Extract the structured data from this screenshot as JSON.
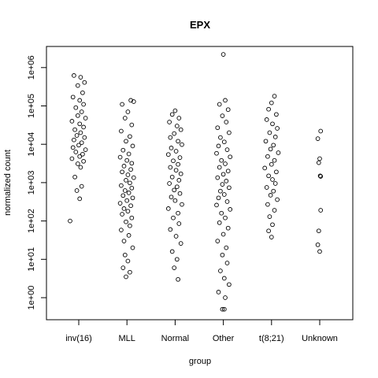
{
  "chart_data": {
    "type": "scatter",
    "title": "EPX",
    "xlabel": "group",
    "ylabel": "normalized count",
    "y_scale": "log10",
    "ylim": [
      0.3,
      3000000
    ],
    "grid": false,
    "legend": "none",
    "marker": "open-circle",
    "categories": [
      "inv(16)",
      "MLL",
      "Normal",
      "Other",
      "t(8;21)",
      "Unknown"
    ],
    "y_ticks": [
      {
        "value": 1,
        "label": "1e+00"
      },
      {
        "value": 10,
        "label": "1e+01"
      },
      {
        "value": 100,
        "label": "1e+02"
      },
      {
        "value": 1000,
        "label": "1e+03"
      },
      {
        "value": 10000,
        "label": "1e+04"
      },
      {
        "value": 100000,
        "label": "1e+05"
      },
      {
        "value": 1000000,
        "label": "1e+06"
      }
    ],
    "series": [
      {
        "category": "inv(16)",
        "points": [
          {
            "x": -0.1,
            "y": 620000
          },
          {
            "x": 0.04,
            "y": 560000
          },
          {
            "x": 0.12,
            "y": 410000
          },
          {
            "x": -0.02,
            "y": 340000
          },
          {
            "x": 0.08,
            "y": 220000
          },
          {
            "x": -0.12,
            "y": 170000
          },
          {
            "x": 0.02,
            "y": 140000
          },
          {
            "x": 0.1,
            "y": 110000
          },
          {
            "x": -0.06,
            "y": 90000
          },
          {
            "x": 0.06,
            "y": 70000
          },
          {
            "x": -0.02,
            "y": 56000
          },
          {
            "x": 0.14,
            "y": 48000
          },
          {
            "x": -0.14,
            "y": 40000
          },
          {
            "x": 0.02,
            "y": 34000
          },
          {
            "x": 0.1,
            "y": 28000
          },
          {
            "x": -0.08,
            "y": 24000
          },
          {
            "x": 0.04,
            "y": 20000
          },
          {
            "x": -0.04,
            "y": 17000
          },
          {
            "x": 0.12,
            "y": 15000
          },
          {
            "x": -0.1,
            "y": 13000
          },
          {
            "x": 0.06,
            "y": 11000
          },
          {
            "x": 0.0,
            "y": 9500
          },
          {
            "x": -0.12,
            "y": 8200
          },
          {
            "x": 0.14,
            "y": 7200
          },
          {
            "x": -0.06,
            "y": 6300
          },
          {
            "x": 0.08,
            "y": 5500
          },
          {
            "x": 0.02,
            "y": 4800
          },
          {
            "x": -0.14,
            "y": 4200
          },
          {
            "x": 0.1,
            "y": 3600
          },
          {
            "x": -0.02,
            "y": 3100
          },
          {
            "x": 0.04,
            "y": 2500
          },
          {
            "x": -0.08,
            "y": 1400
          },
          {
            "x": 0.06,
            "y": 800
          },
          {
            "x": -0.04,
            "y": 620
          },
          {
            "x": 0.02,
            "y": 380
          },
          {
            "x": -0.18,
            "y": 100
          }
        ]
      },
      {
        "category": "MLL",
        "points": [
          {
            "x": 0.08,
            "y": 140000
          },
          {
            "x": 0.14,
            "y": 130000
          },
          {
            "x": -0.1,
            "y": 110000
          },
          {
            "x": 0.02,
            "y": 70000
          },
          {
            "x": -0.04,
            "y": 48000
          },
          {
            "x": 0.1,
            "y": 32000
          },
          {
            "x": -0.12,
            "y": 22000
          },
          {
            "x": 0.06,
            "y": 16000
          },
          {
            "x": -0.02,
            "y": 12000
          },
          {
            "x": 0.12,
            "y": 9000
          },
          {
            "x": -0.08,
            "y": 7000
          },
          {
            "x": 0.04,
            "y": 5600
          },
          {
            "x": -0.14,
            "y": 4600
          },
          {
            "x": 0.0,
            "y": 3800
          },
          {
            "x": 0.1,
            "y": 3200
          },
          {
            "x": -0.06,
            "y": 2700
          },
          {
            "x": 0.08,
            "y": 2200
          },
          {
            "x": -0.1,
            "y": 1900
          },
          {
            "x": 0.02,
            "y": 1600
          },
          {
            "x": 0.14,
            "y": 1350
          },
          {
            "x": -0.02,
            "y": 1150
          },
          {
            "x": 0.06,
            "y": 980
          },
          {
            "x": -0.12,
            "y": 840
          },
          {
            "x": 0.1,
            "y": 720
          },
          {
            "x": -0.04,
            "y": 620
          },
          {
            "x": 0.04,
            "y": 540
          },
          {
            "x": -0.08,
            "y": 460
          },
          {
            "x": 0.12,
            "y": 400
          },
          {
            "x": 0.0,
            "y": 340
          },
          {
            "x": -0.14,
            "y": 290
          },
          {
            "x": 0.08,
            "y": 250
          },
          {
            "x": -0.06,
            "y": 210
          },
          {
            "x": 0.02,
            "y": 180
          },
          {
            "x": -0.1,
            "y": 150
          },
          {
            "x": 0.1,
            "y": 120
          },
          {
            "x": -0.02,
            "y": 95
          },
          {
            "x": 0.06,
            "y": 75
          },
          {
            "x": -0.12,
            "y": 58
          },
          {
            "x": 0.04,
            "y": 42
          },
          {
            "x": -0.06,
            "y": 30
          },
          {
            "x": 0.12,
            "y": 20
          },
          {
            "x": -0.04,
            "y": 13
          },
          {
            "x": 0.02,
            "y": 9
          },
          {
            "x": -0.08,
            "y": 6
          },
          {
            "x": 0.06,
            "y": 4.6
          },
          {
            "x": -0.02,
            "y": 3.5
          }
        ]
      },
      {
        "category": "Normal",
        "points": [
          {
            "x": 0.0,
            "y": 75000
          },
          {
            "x": -0.06,
            "y": 60000
          },
          {
            "x": 0.08,
            "y": 48000
          },
          {
            "x": -0.12,
            "y": 38000
          },
          {
            "x": 0.04,
            "y": 30000
          },
          {
            "x": 0.12,
            "y": 24000
          },
          {
            "x": -0.02,
            "y": 19000
          },
          {
            "x": -0.1,
            "y": 15000
          },
          {
            "x": 0.06,
            "y": 12000
          },
          {
            "x": 0.14,
            "y": 9800
          },
          {
            "x": -0.08,
            "y": 8000
          },
          {
            "x": 0.02,
            "y": 6600
          },
          {
            "x": -0.14,
            "y": 5400
          },
          {
            "x": 0.1,
            "y": 4500
          },
          {
            "x": -0.04,
            "y": 3700
          },
          {
            "x": 0.06,
            "y": 3000
          },
          {
            "x": -0.1,
            "y": 2500
          },
          {
            "x": 0.02,
            "y": 2100
          },
          {
            "x": 0.12,
            "y": 1700
          },
          {
            "x": -0.06,
            "y": 1400
          },
          {
            "x": 0.08,
            "y": 1150
          },
          {
            "x": -0.12,
            "y": 950
          },
          {
            "x": 0.04,
            "y": 780
          },
          {
            "x": -0.02,
            "y": 640
          },
          {
            "x": 0.1,
            "y": 520
          },
          {
            "x": -0.08,
            "y": 420
          },
          {
            "x": 0.0,
            "y": 340
          },
          {
            "x": 0.14,
            "y": 270
          },
          {
            "x": -0.14,
            "y": 210
          },
          {
            "x": 0.06,
            "y": 160
          },
          {
            "x": -0.04,
            "y": 120
          },
          {
            "x": 0.08,
            "y": 85
          },
          {
            "x": -0.1,
            "y": 60
          },
          {
            "x": 0.02,
            "y": 40
          },
          {
            "x": 0.12,
            "y": 26
          },
          {
            "x": -0.06,
            "y": 16
          },
          {
            "x": 0.04,
            "y": 10
          },
          {
            "x": -0.02,
            "y": 6
          },
          {
            "x": 0.06,
            "y": 3
          }
        ]
      },
      {
        "category": "Other",
        "points": [
          {
            "x": 0.0,
            "y": 2200000
          },
          {
            "x": 0.04,
            "y": 140000
          },
          {
            "x": -0.08,
            "y": 110000
          },
          {
            "x": 0.1,
            "y": 80000
          },
          {
            "x": -0.02,
            "y": 55000
          },
          {
            "x": 0.06,
            "y": 38000
          },
          {
            "x": -0.12,
            "y": 27000
          },
          {
            "x": 0.12,
            "y": 20000
          },
          {
            "x": -0.06,
            "y": 15000
          },
          {
            "x": 0.02,
            "y": 11500
          },
          {
            "x": -0.1,
            "y": 9000
          },
          {
            "x": 0.08,
            "y": 7200
          },
          {
            "x": -0.14,
            "y": 5800
          },
          {
            "x": 0.14,
            "y": 4700
          },
          {
            "x": -0.04,
            "y": 3800
          },
          {
            "x": 0.04,
            "y": 3100
          },
          {
            "x": -0.08,
            "y": 2500
          },
          {
            "x": 0.1,
            "y": 2000
          },
          {
            "x": 0.0,
            "y": 1650
          },
          {
            "x": -0.12,
            "y": 1350
          },
          {
            "x": 0.06,
            "y": 1100
          },
          {
            "x": -0.02,
            "y": 900
          },
          {
            "x": 0.12,
            "y": 740
          },
          {
            "x": -0.06,
            "y": 600
          },
          {
            "x": 0.02,
            "y": 490
          },
          {
            "x": -0.1,
            "y": 400
          },
          {
            "x": 0.08,
            "y": 320
          },
          {
            "x": -0.14,
            "y": 260
          },
          {
            "x": 0.14,
            "y": 200
          },
          {
            "x": -0.04,
            "y": 160
          },
          {
            "x": 0.04,
            "y": 120
          },
          {
            "x": -0.08,
            "y": 90
          },
          {
            "x": 0.1,
            "y": 65
          },
          {
            "x": 0.0,
            "y": 45
          },
          {
            "x": -0.12,
            "y": 30
          },
          {
            "x": 0.06,
            "y": 20
          },
          {
            "x": -0.02,
            "y": 13
          },
          {
            "x": 0.08,
            "y": 8
          },
          {
            "x": -0.06,
            "y": 5
          },
          {
            "x": 0.02,
            "y": 3.2
          },
          {
            "x": 0.12,
            "y": 2.2
          },
          {
            "x": -0.1,
            "y": 1.4
          },
          {
            "x": 0.04,
            "y": 1.0
          },
          {
            "x": -0.02,
            "y": 0.5
          },
          {
            "x": 0.02,
            "y": 0.5
          }
        ]
      },
      {
        "category": "t(8;21)",
        "points": [
          {
            "x": 0.06,
            "y": 180000
          },
          {
            "x": 0.0,
            "y": 120000
          },
          {
            "x": -0.06,
            "y": 82000
          },
          {
            "x": 0.1,
            "y": 60000
          },
          {
            "x": -0.1,
            "y": 44000
          },
          {
            "x": 0.02,
            "y": 34000
          },
          {
            "x": 0.12,
            "y": 26000
          },
          {
            "x": -0.04,
            "y": 20000
          },
          {
            "x": 0.08,
            "y": 15500
          },
          {
            "x": -0.12,
            "y": 12000
          },
          {
            "x": 0.04,
            "y": 9500
          },
          {
            "x": -0.02,
            "y": 7500
          },
          {
            "x": 0.14,
            "y": 6000
          },
          {
            "x": -0.08,
            "y": 4800
          },
          {
            "x": 0.06,
            "y": 3800
          },
          {
            "x": 0.0,
            "y": 3000
          },
          {
            "x": -0.14,
            "y": 2400
          },
          {
            "x": 0.1,
            "y": 1900
          },
          {
            "x": -0.06,
            "y": 1500
          },
          {
            "x": 0.02,
            "y": 1200
          },
          {
            "x": 0.08,
            "y": 950
          },
          {
            "x": -0.1,
            "y": 750
          },
          {
            "x": 0.04,
            "y": 600
          },
          {
            "x": -0.02,
            "y": 470
          },
          {
            "x": 0.12,
            "y": 360
          },
          {
            "x": -0.08,
            "y": 270
          },
          {
            "x": 0.06,
            "y": 190
          },
          {
            "x": -0.04,
            "y": 130
          },
          {
            "x": 0.02,
            "y": 80
          },
          {
            "x": -0.06,
            "y": 55
          },
          {
            "x": 0.0,
            "y": 38
          }
        ]
      },
      {
        "category": "Unknown",
        "points": [
          {
            "x": 0.02,
            "y": 22000
          },
          {
            "x": -0.04,
            "y": 14000
          },
          {
            "x": 0.0,
            "y": 4200
          },
          {
            "x": -0.02,
            "y": 3300
          },
          {
            "x": 0.01,
            "y": 1500
          },
          {
            "x": 0.02,
            "y": 1450
          },
          {
            "x": 0.02,
            "y": 190
          },
          {
            "x": -0.02,
            "y": 55
          },
          {
            "x": -0.04,
            "y": 24
          },
          {
            "x": 0.0,
            "y": 16
          }
        ]
      }
    ]
  }
}
